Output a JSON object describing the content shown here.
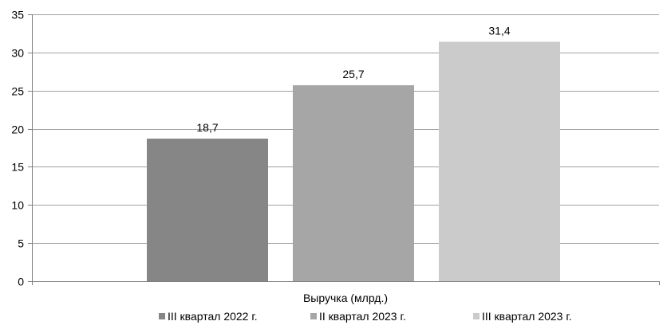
{
  "chart_data": {
    "type": "bar",
    "categories": [
      "Выручка (млрд.)"
    ],
    "series": [
      {
        "name": "III квартал 2022 г.",
        "values": [
          18.7
        ],
        "color": "#868686",
        "label": "18,7"
      },
      {
        "name": "II квартал 2023 г.",
        "values": [
          25.7
        ],
        "color": "#a6a6a6",
        "label": "25,7"
      },
      {
        "name": "III квартал 2023 г.",
        "values": [
          31.4
        ],
        "color": "#cbcbcb",
        "label": "31,4"
      }
    ],
    "ylim": [
      0,
      35
    ],
    "yticks": [
      0,
      5,
      10,
      15,
      20,
      25,
      30,
      35
    ],
    "grid": true,
    "legend": "bottom",
    "gridline_color": "#a0a0a0",
    "axis_color": "#808080"
  }
}
